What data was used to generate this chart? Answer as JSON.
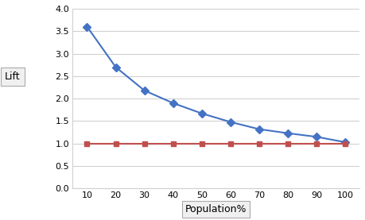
{
  "x": [
    10,
    20,
    30,
    40,
    50,
    60,
    70,
    80,
    90,
    100
  ],
  "lift_values": [
    3.6,
    2.7,
    2.18,
    1.9,
    1.67,
    1.48,
    1.32,
    1.23,
    1.15,
    1.03
  ],
  "baseline_values": [
    1.0,
    1.0,
    1.0,
    1.0,
    1.0,
    1.0,
    1.0,
    1.0,
    1.0,
    1.0
  ],
  "lift_color": "#4472C4",
  "baseline_color": "#C0504D",
  "lift_label": "Lift",
  "xlabel": "Population%",
  "ylim": [
    0,
    4
  ],
  "xlim": [
    5,
    105
  ],
  "yticks": [
    0,
    0.5,
    1.0,
    1.5,
    2.0,
    2.5,
    3.0,
    3.5,
    4.0
  ],
  "xticks": [
    10,
    20,
    30,
    40,
    50,
    60,
    70,
    80,
    90,
    100
  ],
  "background_color": "#ffffff",
  "grid_color": "#d0d0d0"
}
